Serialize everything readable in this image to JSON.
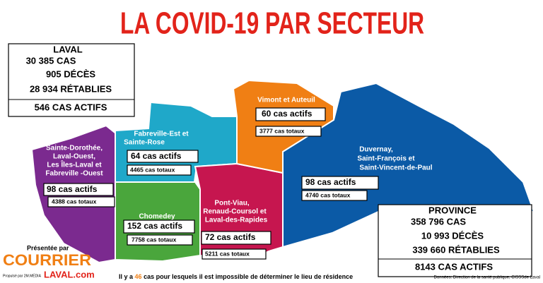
{
  "title": "LA COVID-19 PAR SECTEUR",
  "laval": {
    "name": "LAVAL",
    "lines": [
      "30 385 CAS",
      "905 DÉCÈS",
      "28 934 RÉTABLIES",
      "546 CAS ACTIFS"
    ]
  },
  "sectors": [
    {
      "name": [
        "Sainte-Dorothée,",
        "Laval-Ouest,",
        "Les Îles-Laval et",
        "Fabreville -Ouest"
      ],
      "active": "98 cas actifs",
      "total": "4388 cas totaux"
    },
    {
      "name": [
        "Fabreville-Est et",
        "Sainte-Rose"
      ],
      "active": "64 cas actifs",
      "total": "4465 cas totaux"
    },
    {
      "name": [
        "Chomedey"
      ],
      "active": "152 cas actifs",
      "total": "7758 cas totaux"
    },
    {
      "name": [
        "Pont-Viau,",
        "Renaud-Coursol et",
        "Laval-des-Rapides"
      ],
      "active": "72 cas actifs",
      "total": "5211 cas totaux"
    },
    {
      "name": [
        "Vimont et Auteuil"
      ],
      "active": "60 cas actifs",
      "total": "3777 cas totaux"
    },
    {
      "name": [
        "Duvernay,",
        "Saint-François et",
        "Saint-Vincent-de-Paul"
      ],
      "active": "98 cas actifs",
      "total": "4740 cas totaux"
    }
  ],
  "province": {
    "name": "PROVINCE",
    "lines": [
      "358 796 CAS",
      "10 993 DÉCÈS",
      "339 660 RÉTABLIES",
      "8143 CAS ACTIFS"
    ]
  },
  "sponsor": {
    "label": "Présentée par",
    "brand": "COURRIER",
    "tagline": "Propulsé par 2M.MÉDIA",
    "site": "LAVAL.com"
  },
  "footnote": {
    "before": "Il y a",
    "number": "46",
    "after": "cas pour lesquels il est impossible de déterminer le lieu de résidence"
  },
  "source": "Données: Direction de la santé publique, CISSSde Laval"
}
